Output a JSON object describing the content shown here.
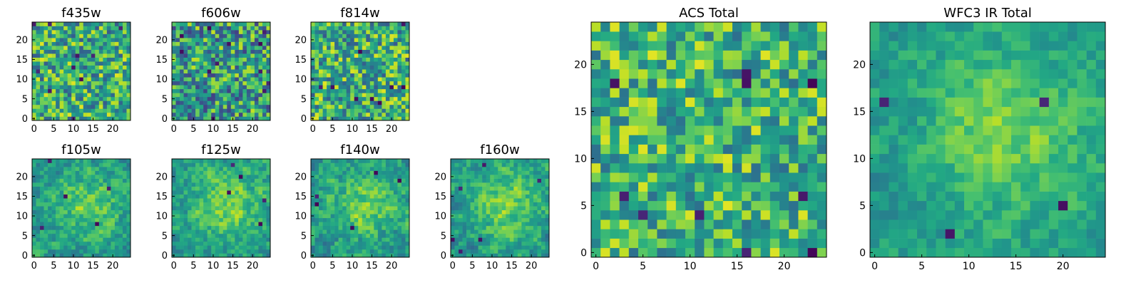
{
  "figure": {
    "description_colormap": "viridis",
    "colors": {
      "low": "#440154",
      "mid": "#21918c",
      "high": "#fde725",
      "frame": "#000000"
    }
  },
  "chart_data": [
    {
      "type": "heatmap",
      "title": "f435w",
      "size": 25,
      "xticks": [
        "0",
        "5",
        "10",
        "15",
        "20"
      ],
      "yticks": [
        "0",
        "5",
        "10",
        "15",
        "20"
      ],
      "pattern": "noise",
      "seed": 11,
      "center": 0.62,
      "spread": 0.34,
      "dark_pixels": 10
    },
    {
      "type": "heatmap",
      "title": "f606w",
      "size": 25,
      "xticks": [
        "0",
        "5",
        "10",
        "15",
        "20"
      ],
      "yticks": [
        "0",
        "5",
        "10",
        "15",
        "20"
      ],
      "pattern": "noise",
      "seed": 23,
      "center": 0.55,
      "spread": 0.36,
      "dark_pixels": 12
    },
    {
      "type": "heatmap",
      "title": "f814w",
      "size": 25,
      "xticks": [
        "0",
        "5",
        "10",
        "15",
        "20"
      ],
      "yticks": [
        "0",
        "5",
        "10",
        "15",
        "20"
      ],
      "pattern": "noise",
      "seed": 37,
      "center": 0.62,
      "spread": 0.34,
      "dark_pixels": 9
    },
    {
      "type": "heatmap",
      "title": "f105w",
      "size": 25,
      "xticks": [
        "0",
        "5",
        "10",
        "15",
        "20"
      ],
      "yticks": [
        "0",
        "5",
        "10",
        "15",
        "20"
      ],
      "pattern": "blob",
      "seed": 41,
      "center": 0.6,
      "spread": 0.26,
      "dark_pixels": 5
    },
    {
      "type": "heatmap",
      "title": "f125w",
      "size": 25,
      "xticks": [
        "0",
        "5",
        "10",
        "15",
        "20"
      ],
      "yticks": [
        "0",
        "5",
        "10",
        "15",
        "20"
      ],
      "pattern": "blob",
      "seed": 53,
      "center": 0.62,
      "spread": 0.26,
      "dark_pixels": 5
    },
    {
      "type": "heatmap",
      "title": "f140w",
      "size": 25,
      "xticks": [
        "0",
        "5",
        "10",
        "15",
        "20"
      ],
      "yticks": [
        "0",
        "5",
        "10",
        "15",
        "20"
      ],
      "pattern": "blob",
      "seed": 67,
      "center": 0.6,
      "spread": 0.28,
      "dark_pixels": 5
    },
    {
      "type": "heatmap",
      "title": "f160w",
      "size": 25,
      "xticks": [
        "0",
        "5",
        "10",
        "15",
        "20"
      ],
      "yticks": [
        "0",
        "5",
        "10",
        "15",
        "20"
      ],
      "pattern": "blob",
      "seed": 71,
      "center": 0.62,
      "spread": 0.26,
      "dark_pixels": 6
    },
    {
      "type": "heatmap",
      "title": "ACS Total",
      "size": 25,
      "xticks": [
        "0",
        "5",
        "10",
        "15",
        "20"
      ],
      "yticks": [
        "0",
        "5",
        "10",
        "15",
        "20"
      ],
      "pattern": "noise",
      "seed": 83,
      "center": 0.66,
      "spread": 0.3,
      "dark_pixels": 10
    },
    {
      "type": "heatmap",
      "title": "WFC3 IR Total",
      "size": 25,
      "xticks": [
        "0",
        "5",
        "10",
        "15",
        "20"
      ],
      "yticks": [
        "0",
        "5",
        "10",
        "15",
        "20"
      ],
      "pattern": "blob",
      "seed": 97,
      "center": 0.62,
      "spread": 0.2,
      "dark_pixels": 4
    }
  ]
}
